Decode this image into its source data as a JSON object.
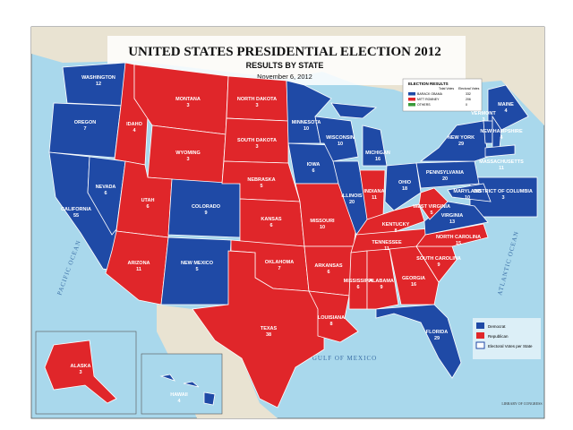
{
  "title": "UNITED STATES PRESIDENTIAL ELECTION 2012",
  "subtitle": "RESULTS BY STATE",
  "date": "November 6, 2012",
  "legend": [
    {
      "label": "Democrat",
      "color": "#1f4aa6"
    },
    {
      "label": "Republican",
      "color": "#e0262a"
    }
  ],
  "legend_votes_label": "Electoral Votes per State",
  "results": {
    "title": "ELECTION RESULTS",
    "columns": [
      "Total Votes",
      "Electoral Votes"
    ],
    "rows": [
      {
        "name": "BARACK OBAMA",
        "electoral": 332
      },
      {
        "name": "MITT ROMNEY",
        "electoral": 206
      },
      {
        "name": "OTHERS",
        "electoral": 0
      }
    ]
  },
  "states": [
    {
      "name": "WASHINGTON",
      "votes": 12,
      "winner": 0
    },
    {
      "name": "OREGON",
      "votes": 7,
      "winner": 0
    },
    {
      "name": "CALIFORNIA",
      "votes": 55,
      "winner": 0
    },
    {
      "name": "NEVADA",
      "votes": 6,
      "winner": 0
    },
    {
      "name": "IDAHO",
      "votes": 4,
      "winner": 1
    },
    {
      "name": "MONTANA",
      "votes": 3,
      "winner": 1
    },
    {
      "name": "WYOMING",
      "votes": 3,
      "winner": 1
    },
    {
      "name": "UTAH",
      "votes": 6,
      "winner": 1
    },
    {
      "name": "COLORADO",
      "votes": 9,
      "winner": 0
    },
    {
      "name": "ARIZONA",
      "votes": 11,
      "winner": 1
    },
    {
      "name": "NEW MEXICO",
      "votes": 5,
      "winner": 0
    },
    {
      "name": "NORTH DAKOTA",
      "votes": 3,
      "winner": 1
    },
    {
      "name": "SOUTH DAKOTA",
      "votes": 3,
      "winner": 1
    },
    {
      "name": "NEBRASKA",
      "votes": 5,
      "winner": 1
    },
    {
      "name": "KANSAS",
      "votes": 6,
      "winner": 1
    },
    {
      "name": "OKLAHOMA",
      "votes": 7,
      "winner": 1
    },
    {
      "name": "TEXAS",
      "votes": 38,
      "winner": 1
    },
    {
      "name": "MINNESOTA",
      "votes": 10,
      "winner": 0
    },
    {
      "name": "IOWA",
      "votes": 6,
      "winner": 0
    },
    {
      "name": "MISSOURI",
      "votes": 10,
      "winner": 1
    },
    {
      "name": "ARKANSAS",
      "votes": 6,
      "winner": 1
    },
    {
      "name": "LOUISIANA",
      "votes": 8,
      "winner": 1
    },
    {
      "name": "WISCONSIN",
      "votes": 10,
      "winner": 0
    },
    {
      "name": "ILLINOIS",
      "votes": 20,
      "winner": 0
    },
    {
      "name": "MICHIGAN",
      "votes": 16,
      "winner": 0
    },
    {
      "name": "INDIANA",
      "votes": 11,
      "winner": 1
    },
    {
      "name": "OHIO",
      "votes": 18,
      "winner": 0
    },
    {
      "name": "KENTUCKY",
      "votes": 8,
      "winner": 1
    },
    {
      "name": "TENNESSEE",
      "votes": 11,
      "winner": 1
    },
    {
      "name": "MISSISSIPPI",
      "votes": 6,
      "winner": 1
    },
    {
      "name": "ALABAMA",
      "votes": 9,
      "winner": 1
    },
    {
      "name": "GEORGIA",
      "votes": 16,
      "winner": 1
    },
    {
      "name": "FLORIDA",
      "votes": 29,
      "winner": 0
    },
    {
      "name": "SOUTH CAROLINA",
      "votes": 9,
      "winner": 1
    },
    {
      "name": "NORTH CAROLINA",
      "votes": 15,
      "winner": 1
    },
    {
      "name": "VIRGINIA",
      "votes": 13,
      "winner": 0
    },
    {
      "name": "WEST VIRGINIA",
      "votes": 5,
      "winner": 1
    },
    {
      "name": "PENNSYLVANIA",
      "votes": 20,
      "winner": 0
    },
    {
      "name": "NEW YORK",
      "votes": 29,
      "winner": 0
    },
    {
      "name": "MARYLAND",
      "votes": 10,
      "winner": 0
    },
    {
      "name": "MAINE",
      "votes": 4,
      "winner": 0
    },
    {
      "name": "VERMONT",
      "votes": 3,
      "winner": 0
    },
    {
      "name": "NEW HAMPSHIRE",
      "votes": 4,
      "winner": 0
    },
    {
      "name": "MASSACHUSETTS",
      "votes": 11,
      "winner": 0
    },
    {
      "name": "ALASKA",
      "votes": 3,
      "winner": 1
    },
    {
      "name": "HAWAII",
      "votes": 4,
      "winner": 0
    },
    {
      "name": "DISTRICT OF COLUMBIA",
      "votes": 3,
      "winner": 0
    }
  ],
  "labels": {
    "pacific": "PACIFIC OCEAN",
    "atlantic": "ATLANTIC OCEAN",
    "gulf": "GULF OF MEXICO",
    "library": "LIBRARY OF CONGRESS"
  }
}
